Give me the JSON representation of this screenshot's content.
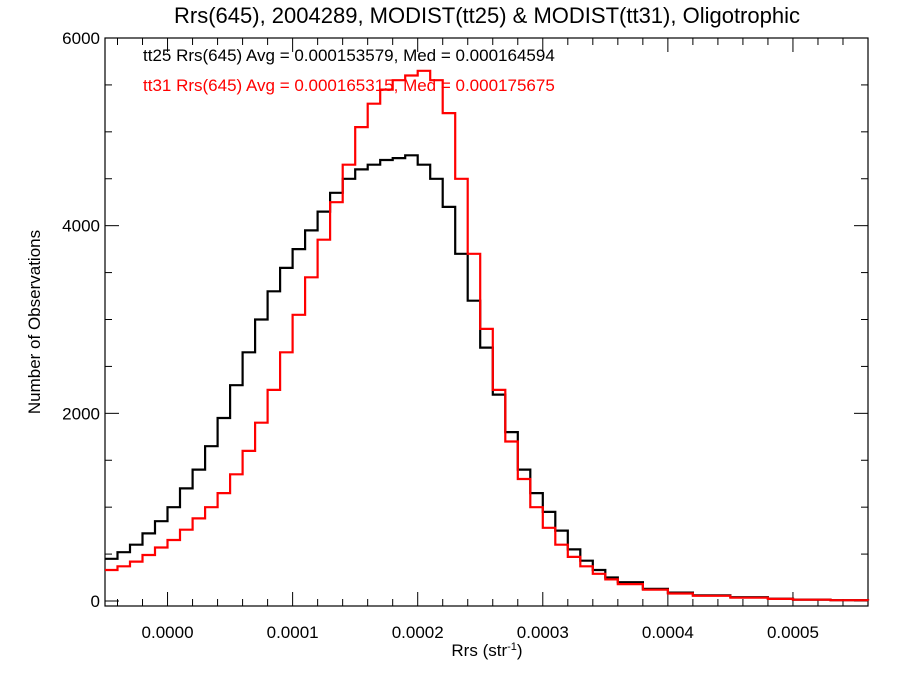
{
  "chart_data": {
    "type": "line",
    "title": "Rrs(645), 2004289, MODIST(tt25) & MODIST(tt31), Oligotrophic",
    "xlabel": "Rrs (str",
    "xlabel_superscript": "-1",
    "xlabel_suffix": ")",
    "ylabel": "Number of Observations",
    "xlim": [
      -5e-05,
      0.00056
    ],
    "ylim": [
      0,
      6000
    ],
    "x_ticks": [
      0.0,
      0.0001,
      0.0002,
      0.0003,
      0.0004,
      0.0005
    ],
    "x_tick_labels": [
      "0.0000",
      "0.0001",
      "0.0002",
      "0.0003",
      "0.0004",
      "0.0005"
    ],
    "y_ticks": [
      0,
      2000,
      4000,
      6000
    ],
    "y_tick_labels": [
      "0",
      "2000",
      "4000",
      "6000"
    ],
    "grid": false,
    "legend_position": "top-left",
    "series": [
      {
        "name": "tt25",
        "legend_text": "tt25 Rrs(645) Avg = 0.000153579, Med = 0.000164594",
        "color": "#000000",
        "style": "step",
        "x": [
          -5e-05,
          -4e-05,
          -3e-05,
          -2e-05,
          -1e-05,
          0.0,
          1e-05,
          2e-05,
          3e-05,
          4e-05,
          5e-05,
          6e-05,
          7e-05,
          8e-05,
          9e-05,
          0.0001,
          0.00011,
          0.00012,
          0.00013,
          0.00014,
          0.00015,
          0.00016,
          0.00017,
          0.00018,
          0.00019,
          0.0002,
          0.00021,
          0.00022,
          0.00023,
          0.00024,
          0.00025,
          0.00026,
          0.00027,
          0.00028,
          0.00029,
          0.0003,
          0.00031,
          0.00032,
          0.00033,
          0.00034,
          0.00035,
          0.00036,
          0.00038,
          0.0004,
          0.00042,
          0.00045,
          0.00048,
          0.0005,
          0.00053,
          0.00056
        ],
        "y": [
          450,
          520,
          600,
          720,
          850,
          1000,
          1200,
          1400,
          1650,
          1950,
          2300,
          2650,
          3000,
          3300,
          3550,
          3750,
          3950,
          4150,
          4350,
          4500,
          4600,
          4650,
          4700,
          4720,
          4750,
          4650,
          4500,
          4200,
          3700,
          3200,
          2700,
          2200,
          1800,
          1400,
          1150,
          950,
          750,
          550,
          430,
          330,
          250,
          200,
          130,
          90,
          60,
          40,
          25,
          15,
          8,
          5
        ]
      },
      {
        "name": "tt31",
        "legend_text": "tt31 Rrs(645) Avg = 0.000165315, Med = 0.000175675",
        "color": "#ff0000",
        "style": "step",
        "x": [
          -5e-05,
          -4e-05,
          -3e-05,
          -2e-05,
          -1e-05,
          0.0,
          1e-05,
          2e-05,
          3e-05,
          4e-05,
          5e-05,
          6e-05,
          7e-05,
          8e-05,
          9e-05,
          0.0001,
          0.00011,
          0.00012,
          0.00013,
          0.00014,
          0.00015,
          0.00016,
          0.00017,
          0.00018,
          0.00019,
          0.0002,
          0.00021,
          0.00022,
          0.00023,
          0.00024,
          0.00025,
          0.00026,
          0.00027,
          0.00028,
          0.00029,
          0.0003,
          0.00031,
          0.00032,
          0.00033,
          0.00034,
          0.00035,
          0.00036,
          0.00038,
          0.0004,
          0.00042,
          0.00045,
          0.00048,
          0.0005,
          0.00053,
          0.00056
        ],
        "y": [
          330,
          370,
          420,
          490,
          570,
          650,
          760,
          880,
          1000,
          1150,
          1350,
          1600,
          1900,
          2250,
          2650,
          3050,
          3450,
          3850,
          4250,
          4650,
          5050,
          5300,
          5450,
          5550,
          5600,
          5650,
          5550,
          5200,
          4500,
          3700,
          2900,
          2250,
          1700,
          1300,
          1000,
          780,
          600,
          470,
          370,
          290,
          230,
          180,
          120,
          80,
          55,
          35,
          22,
          14,
          8,
          5
        ]
      }
    ]
  }
}
